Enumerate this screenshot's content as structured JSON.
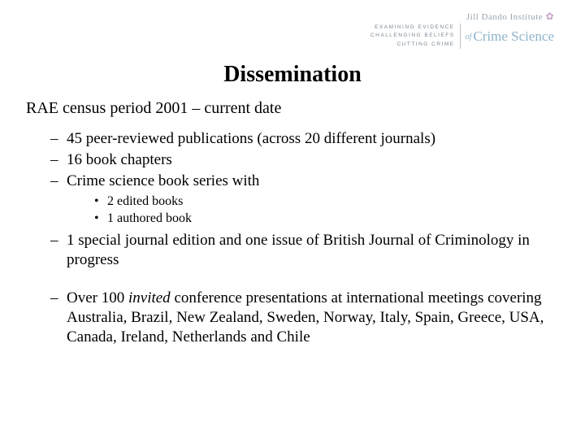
{
  "logo": {
    "top_line": "Jill Dando Institute",
    "tagline1": "EXAMINING EVIDENCE",
    "tagline2": "CHALLENGING BELIEFS",
    "tagline3": "CUTTING CRIME",
    "of": "of",
    "main": "Crime Science"
  },
  "title": "Dissemination",
  "lead": "RAE census period 2001 – current date",
  "items": {
    "a": "45 peer-reviewed publications (across 20 different journals)",
    "b": "16 book chapters",
    "c": "Crime science book series with",
    "c_sub1": "2 edited books",
    "c_sub2": "1 authored book",
    "d": "1 special journal edition and one issue of British Journal of Criminology in progress",
    "e_pre": "Over 100 ",
    "e_em": "invited",
    "e_post": " conference presentations at international meetings covering Australia, Brazil, New Zealand, Sweden, Norway, Italy, Spain, Greece, USA, Canada, Ireland, Netherlands and Chile"
  }
}
